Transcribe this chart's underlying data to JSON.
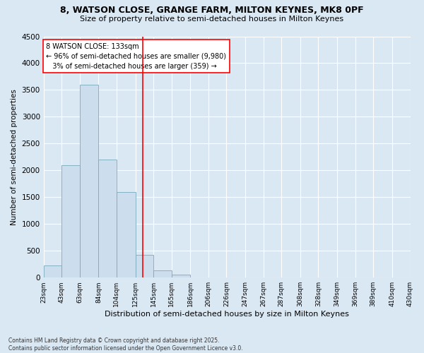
{
  "title1": "8, WATSON CLOSE, GRANGE FARM, MILTON KEYNES, MK8 0PF",
  "title2": "Size of property relative to semi-detached houses in Milton Keynes",
  "xlabel": "Distribution of semi-detached houses by size in Milton Keynes",
  "ylabel": "Number of semi-detached properties",
  "bin_labels": [
    "23sqm",
    "43sqm",
    "63sqm",
    "84sqm",
    "104sqm",
    "125sqm",
    "145sqm",
    "165sqm",
    "186sqm",
    "206sqm",
    "226sqm",
    "247sqm",
    "267sqm",
    "287sqm",
    "308sqm",
    "328sqm",
    "349sqm",
    "369sqm",
    "389sqm",
    "410sqm",
    "430sqm"
  ],
  "bar_values": [
    230,
    2100,
    3600,
    2200,
    1600,
    420,
    130,
    50,
    0,
    0,
    0,
    0,
    0,
    0,
    0,
    0,
    0,
    0,
    0,
    0
  ],
  "bar_color": "#ccdded",
  "bar_edge_color": "#7aaabb",
  "background_color": "#dae8f4",
  "fig_background_color": "#dae8f4",
  "property_line_x": 133,
  "property_line_label": "8 WATSON CLOSE: 133sqm",
  "annotation_smaller": "← 96% of semi-detached houses are smaller (9,980)",
  "annotation_larger": "3% of semi-detached houses are larger (359) →",
  "ylim": [
    0,
    4500
  ],
  "yticks": [
    0,
    500,
    1000,
    1500,
    2000,
    2500,
    3000,
    3500,
    4000,
    4500
  ],
  "footer1": "Contains HM Land Registry data © Crown copyright and database right 2025.",
  "footer2": "Contains public sector information licensed under the Open Government Licence v3.0.",
  "bin_edges": [
    23,
    43,
    63,
    84,
    104,
    125,
    145,
    165,
    186,
    206,
    226,
    247,
    267,
    287,
    308,
    328,
    349,
    369,
    389,
    410,
    430
  ]
}
